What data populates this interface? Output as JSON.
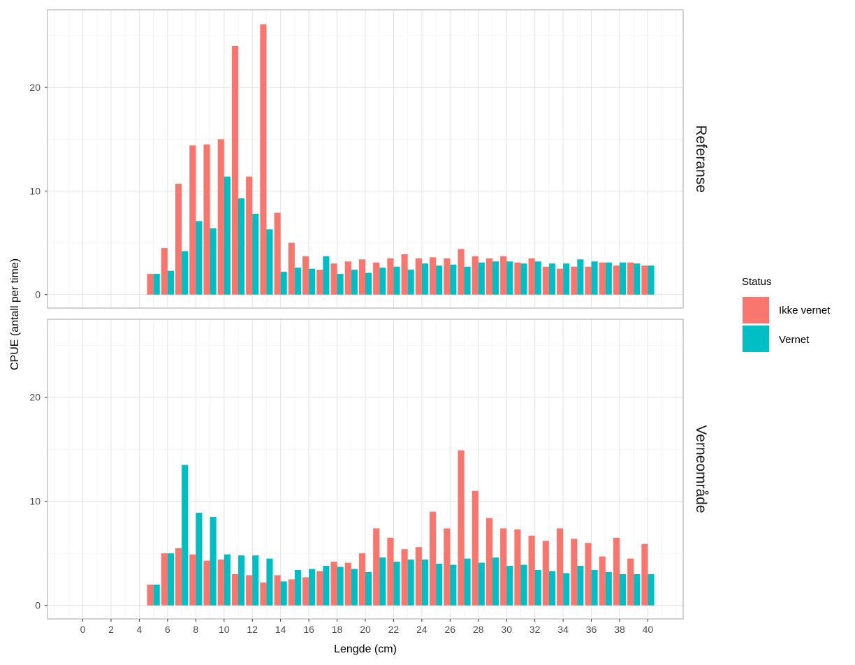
{
  "chart_data": {
    "type": "bar",
    "facets": [
      "Referanse",
      "Verneområde"
    ],
    "xlabel": "Lengde (cm)",
    "ylabel": "CPUE (antall per time)",
    "x_ticks": [
      0,
      2,
      4,
      6,
      8,
      10,
      12,
      14,
      16,
      18,
      20,
      22,
      24,
      26,
      28,
      30,
      32,
      34,
      36,
      38,
      40
    ],
    "y_ticks": [
      0,
      10,
      20
    ],
    "xlim": [
      -2.5,
      42.5
    ],
    "ylim": [
      -1.3,
      27.5
    ],
    "grid": true,
    "legend": {
      "title": "Status",
      "position": "right",
      "entries": [
        {
          "label": "Ikke vernet",
          "color": "#F8766D"
        },
        {
          "label": "Vernet",
          "color": "#00BFC4"
        }
      ]
    },
    "x": [
      5,
      6,
      7,
      8,
      9,
      10,
      11,
      12,
      13,
      14,
      15,
      16,
      17,
      18,
      19,
      20,
      21,
      22,
      23,
      24,
      25,
      26,
      27,
      28,
      29,
      30,
      31,
      32,
      33,
      34,
      35,
      36,
      37,
      38,
      39,
      40
    ],
    "panels": [
      {
        "name": "Referanse",
        "series": [
          {
            "name": "Ikke vernet",
            "values": [
              2.0,
              4.5,
              10.7,
              14.4,
              14.5,
              15.0,
              24.0,
              11.4,
              26.1,
              7.9,
              5.0,
              3.7,
              2.4,
              3.0,
              3.2,
              3.4,
              3.1,
              3.5,
              3.9,
              3.5,
              3.6,
              3.5,
              4.4,
              3.7,
              3.5,
              3.7,
              3.1,
              3.5,
              2.7,
              2.5,
              2.7,
              2.7,
              3.1,
              2.8,
              3.1,
              2.8
            ]
          },
          {
            "name": "Vernet",
            "values": [
              2.0,
              2.3,
              4.2,
              7.1,
              6.4,
              11.4,
              9.3,
              7.8,
              6.3,
              2.2,
              2.6,
              2.5,
              3.7,
              2.0,
              2.4,
              2.1,
              2.6,
              2.7,
              2.4,
              3.0,
              2.8,
              2.9,
              2.7,
              3.1,
              3.2,
              3.2,
              3.0,
              3.2,
              3.0,
              3.0,
              3.4,
              3.2,
              3.1,
              3.1,
              3.0,
              2.8
            ]
          }
        ]
      },
      {
        "name": "Verneområde",
        "series": [
          {
            "name": "Ikke vernet",
            "values": [
              2.0,
              5.0,
              5.5,
              4.9,
              4.3,
              4.4,
              3.0,
              2.9,
              2.2,
              2.9,
              2.5,
              2.7,
              3.3,
              4.2,
              4.1,
              5.0,
              7.4,
              6.5,
              5.4,
              5.6,
              9.0,
              7.4,
              14.9,
              11.0,
              8.4,
              7.4,
              7.3,
              6.7,
              6.2,
              7.4,
              6.4,
              6.0,
              4.7,
              6.5,
              4.5,
              5.9
            ]
          },
          {
            "name": "Vernet",
            "values": [
              2.0,
              5.0,
              13.5,
              8.9,
              8.5,
              4.9,
              4.8,
              4.8,
              4.5,
              2.3,
              3.4,
              3.5,
              3.8,
              3.7,
              3.5,
              3.2,
              4.6,
              4.2,
              4.4,
              4.4,
              4.0,
              3.9,
              4.5,
              4.1,
              4.6,
              3.8,
              3.9,
              3.4,
              3.3,
              3.1,
              3.8,
              3.4,
              3.2,
              3.0,
              3.0,
              3.0
            ]
          }
        ]
      }
    ]
  }
}
